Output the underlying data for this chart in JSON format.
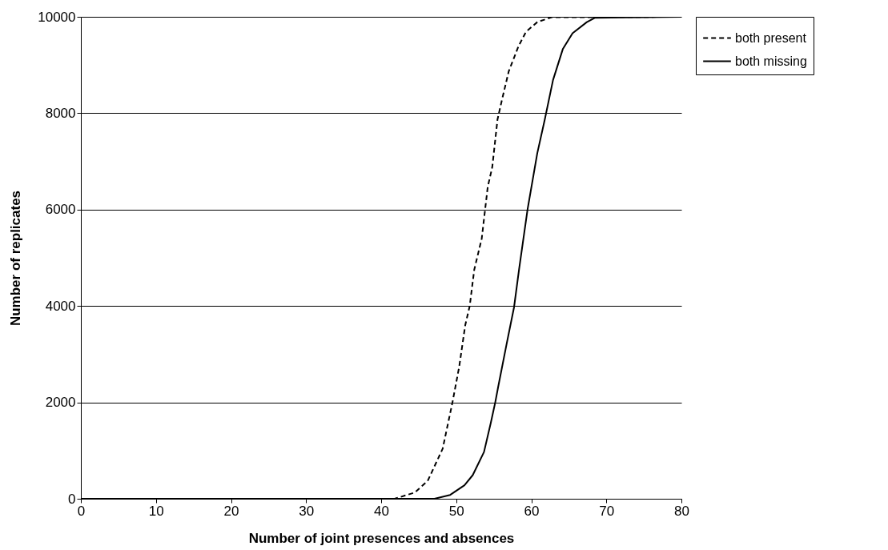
{
  "chart_data": {
    "type": "line",
    "xlabel": "Number of joint presences and absences",
    "ylabel": "Number of replicates",
    "xlim": [
      0,
      80
    ],
    "xticks": [
      0,
      10,
      20,
      30,
      40,
      50,
      60,
      70,
      80
    ],
    "ylim": [
      0,
      10000
    ],
    "yticks": [
      0,
      2000,
      4000,
      6000,
      8000,
      10000
    ],
    "grid": "y",
    "legend": "right",
    "marker": "none",
    "series": [
      {
        "name": "both present",
        "color": "#000000",
        "line_style": "dashed",
        "x": [
          0,
          41.8,
          44.5,
          46.2,
          48.2,
          49.5,
          50.4,
          51.2,
          51.8,
          52.4,
          53.4,
          54.2,
          54.8,
          55.5,
          56.1,
          57,
          58.3,
          59.3,
          60.8,
          62.7,
          80
        ],
        "values": [
          0,
          0,
          130,
          370,
          1040,
          2000,
          2740,
          3600,
          4000,
          4750,
          5400,
          6470,
          6880,
          7870,
          8280,
          8870,
          9390,
          9690,
          9890,
          9990,
          10000
        ]
      },
      {
        "name": "both missing",
        "color": "#000000",
        "line_style": "solid",
        "x": [
          0,
          47.1,
          49.2,
          51.1,
          52.2,
          53.7,
          54.6,
          55.2,
          55.6,
          56.7,
          57.7,
          58.4,
          59.5,
          60.8,
          61.8,
          62.9,
          64.2,
          65.5,
          67.4,
          68.5,
          80
        ],
        "values": [
          0,
          0,
          80,
          280,
          490,
          970,
          1570,
          2000,
          2330,
          3200,
          3970,
          4790,
          6000,
          7170,
          7870,
          8690,
          9330,
          9660,
          9890,
          9980,
          10000
        ]
      }
    ]
  }
}
